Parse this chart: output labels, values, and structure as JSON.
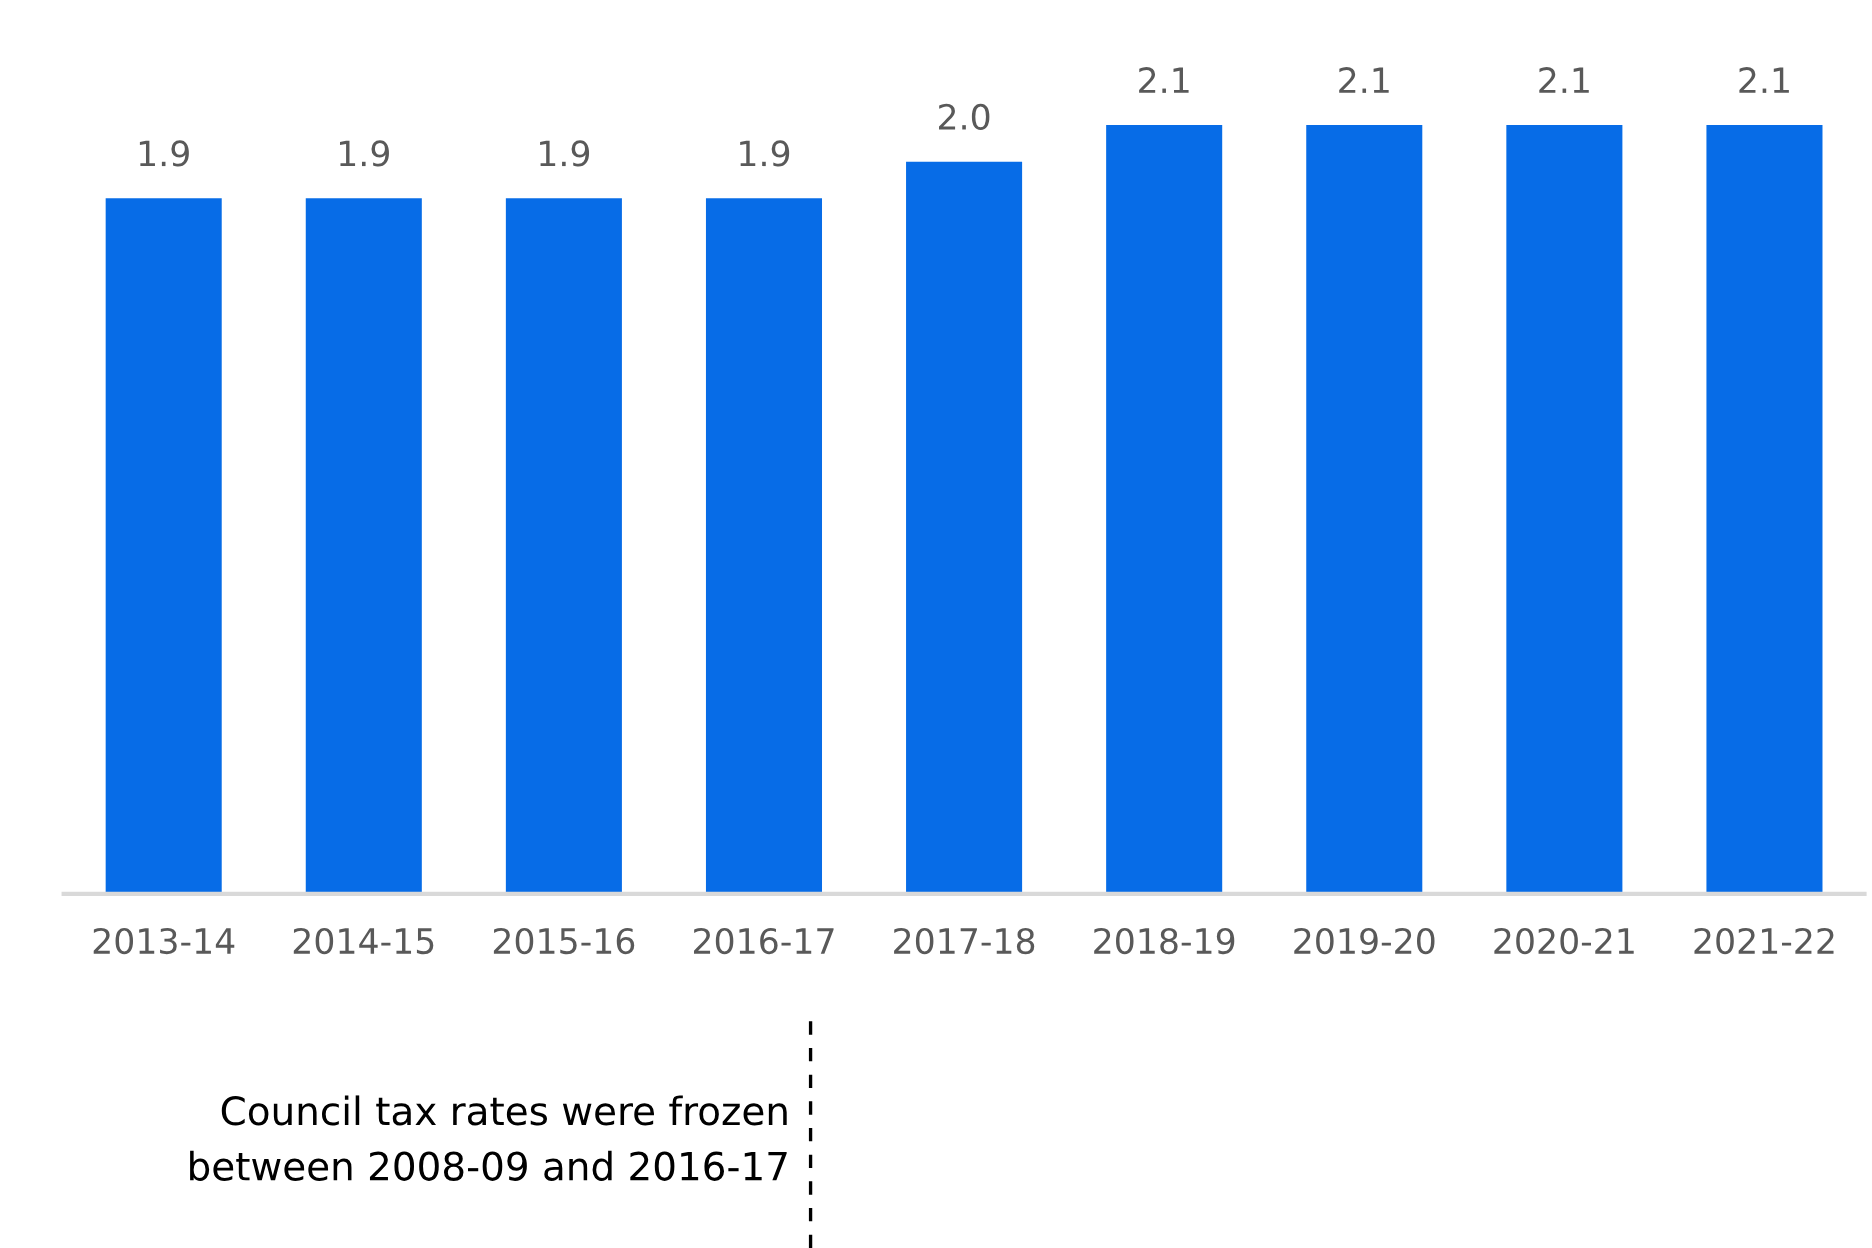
{
  "chart_data": {
    "type": "bar",
    "categories": [
      "2013-14",
      "2014-15",
      "2015-16",
      "2016-17",
      "2017-18",
      "2018-19",
      "2019-20",
      "2020-21",
      "2021-22"
    ],
    "values": [
      1.9,
      1.9,
      1.9,
      1.9,
      2.0,
      2.1,
      2.1,
      2.1,
      2.1
    ],
    "value_labels": [
      "1.9",
      "1.9",
      "1.9",
      "1.9",
      "2.0",
      "2.1",
      "2.1",
      "2.1",
      "2.1"
    ],
    "color": "#076ce7",
    "grid": false,
    "legend": false,
    "annotations": [
      "Council tax rates were frozen\nbetween 2008-09 and 2016-17"
    ]
  }
}
